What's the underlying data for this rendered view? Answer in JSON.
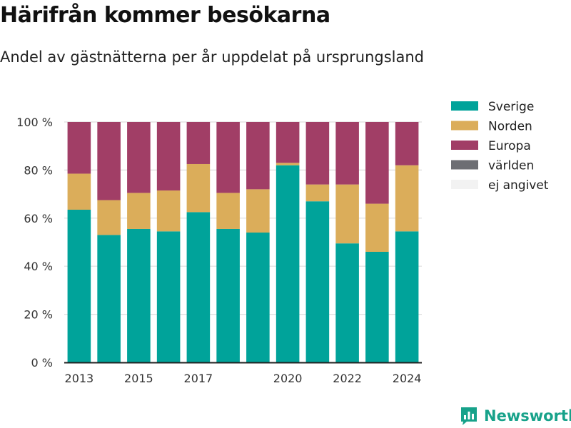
{
  "header": {
    "title": "Härifrån kommer besökarna",
    "subtitle": "Andel av gästnätterna per år uppdelat på ursprungsland"
  },
  "brand": {
    "name": "Newsworthy",
    "icon": "bar-chart-logo-icon"
  },
  "colors": {
    "Sverige": "#00a39a",
    "Norden": "#dbad5a",
    "Europa": "#a13e66",
    "världen": "#6d6e73",
    "ej angivet": "#f2f2f2",
    "brand": "#17a28a",
    "grid": "#dddddd",
    "axis": "#222222"
  },
  "chart_data": {
    "type": "bar",
    "stacked": true,
    "title": "Härifrån kommer besökarna",
    "subtitle": "Andel av gästnätterna per år uppdelat på ursprungsland",
    "categories": [
      "2013",
      "2014",
      "2015",
      "2016",
      "2017",
      "2018",
      "2019",
      "2020",
      "2021",
      "2022",
      "2023",
      "2024"
    ],
    "x_tick_labels": [
      "2013",
      "2015",
      "2017",
      "2020",
      "2022",
      "2024"
    ],
    "y_ticks": [
      0,
      20,
      40,
      60,
      80,
      100
    ],
    "y_tick_labels": [
      "0 %",
      "20 %",
      "40 %",
      "60 %",
      "80 %",
      "100 %"
    ],
    "ylim": [
      0,
      100
    ],
    "grid": true,
    "legend_position": "right",
    "series": [
      {
        "name": "Sverige",
        "values": [
          63.5,
          53,
          55.5,
          54.5,
          62.5,
          55.5,
          54,
          82,
          67,
          49.5,
          46,
          54.5
        ]
      },
      {
        "name": "Norden",
        "values": [
          15,
          14.5,
          15,
          17,
          20,
          15,
          18,
          1,
          7,
          24.5,
          20,
          27.5
        ]
      },
      {
        "name": "Europa",
        "values": [
          21.5,
          32.5,
          29.5,
          28.5,
          17.5,
          29.5,
          28,
          17,
          26,
          26,
          34,
          18
        ]
      },
      {
        "name": "världen",
        "values": [
          0,
          0,
          0,
          0,
          0,
          0,
          0,
          0,
          0,
          0,
          0,
          0
        ]
      },
      {
        "name": "ej angivet",
        "values": [
          0,
          0,
          0,
          0,
          0,
          0,
          0,
          0,
          0,
          0,
          0,
          0
        ]
      }
    ]
  }
}
